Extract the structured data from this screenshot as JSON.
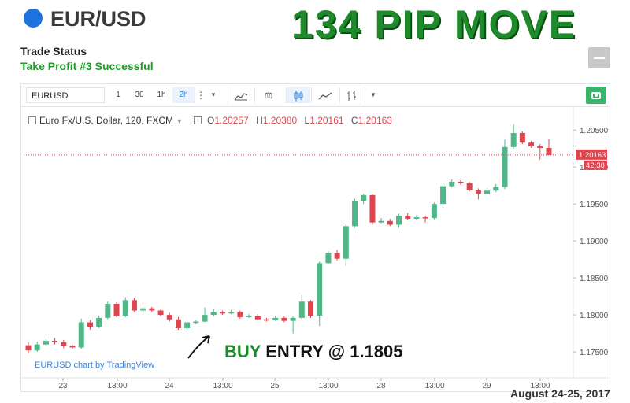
{
  "header": {
    "pair": "EUR/USD",
    "headline": "134 PIP MOVE",
    "trade_status_label": "Trade Status",
    "trade_status_value": "Take Profit #3 Successful"
  },
  "toolbar": {
    "symbol": "EURUSD",
    "intervals": [
      "1",
      "30",
      "1h",
      "2h"
    ],
    "active_interval": "2h",
    "icons": [
      "more-vert-icon",
      "dropdown-caret-icon",
      "indicators-icon",
      "compare-icon",
      "candles-icon",
      "line-chart-icon",
      "bars-icon",
      "dropdown-caret-icon"
    ]
  },
  "legend": {
    "title": "Euro Fx/U.S. Dollar, 120, FXCM",
    "o_label": "O",
    "o_value": "1.20257",
    "h_label": "H",
    "h_value": "1.20380",
    "l_label": "L",
    "l_value": "1.20161",
    "c_label": "C",
    "c_value": "1.20163"
  },
  "watermark": "EURUSD chart by TradingView",
  "annotation": {
    "buy": "BUY",
    "rest": "ENTRY @ 1.1805"
  },
  "date_note": "August 24-25, 2017",
  "colors": {
    "up": "#52b788",
    "down": "#e0454d",
    "headline": "#1e8a2c",
    "accent": "#2e86de"
  },
  "chart_data": {
    "type": "candlestick",
    "ylim": [
      1.1715,
      1.208
    ],
    "y_ticks": [
      "1.17500",
      "1.18000",
      "1.18500",
      "1.19000",
      "1.19500",
      "1.20000",
      "1.20500"
    ],
    "x_ticks": [
      "23",
      "13:00",
      "24",
      "13:00",
      "25",
      "13:00",
      "28",
      "13:00",
      "29",
      "13:00"
    ],
    "last_price": "1.20163",
    "countdown": "42:30",
    "candles": [
      [
        1.1759,
        1.1752,
        1.1763,
        1.1748
      ],
      [
        1.1752,
        1.176,
        1.1764,
        1.175
      ],
      [
        1.176,
        1.1765,
        1.1768,
        1.1758
      ],
      [
        1.1765,
        1.1763,
        1.1769,
        1.176
      ],
      [
        1.1763,
        1.1758,
        1.1766,
        1.1755
      ],
      [
        1.1758,
        1.1756,
        1.176,
        1.1754
      ],
      [
        1.1756,
        1.179,
        1.1795,
        1.1754
      ],
      [
        1.179,
        1.1784,
        1.1793,
        1.178
      ],
      [
        1.1784,
        1.1796,
        1.1799,
        1.1782
      ],
      [
        1.1796,
        1.1815,
        1.1818,
        1.1794
      ],
      [
        1.1815,
        1.1799,
        1.1817,
        1.1797
      ],
      [
        1.1799,
        1.182,
        1.1824,
        1.1797
      ],
      [
        1.182,
        1.1806,
        1.1823,
        1.1804
      ],
      [
        1.1806,
        1.1809,
        1.1811,
        1.1804
      ],
      [
        1.1809,
        1.1806,
        1.1811,
        1.1804
      ],
      [
        1.1806,
        1.18,
        1.1808,
        1.1798
      ],
      [
        1.18,
        1.1794,
        1.1803,
        1.1791
      ],
      [
        1.1794,
        1.1782,
        1.1797,
        1.178
      ],
      [
        1.1782,
        1.179,
        1.1792,
        1.178
      ],
      [
        1.179,
        1.1791,
        1.1793,
        1.1788
      ],
      [
        1.1791,
        1.18,
        1.181,
        1.179
      ],
      [
        1.18,
        1.1804,
        1.1808,
        1.1798
      ],
      [
        1.1804,
        1.1802,
        1.1806,
        1.18
      ],
      [
        1.1802,
        1.1804,
        1.1807,
        1.1801
      ],
      [
        1.1804,
        1.1797,
        1.1806,
        1.1795
      ],
      [
        1.1797,
        1.1799,
        1.1801,
        1.1796
      ],
      [
        1.1799,
        1.1794,
        1.1801,
        1.1792
      ],
      [
        1.1794,
        1.1793,
        1.1796,
        1.1791
      ],
      [
        1.1793,
        1.1796,
        1.1799,
        1.1792
      ],
      [
        1.1796,
        1.1792,
        1.1798,
        1.179
      ],
      [
        1.1792,
        1.1796,
        1.1798,
        1.1775
      ],
      [
        1.1796,
        1.1818,
        1.1827,
        1.1794
      ],
      [
        1.1818,
        1.1799,
        1.182,
        1.1796
      ],
      [
        1.1799,
        1.187,
        1.1872,
        1.1785
      ],
      [
        1.187,
        1.1884,
        1.1886,
        1.1869
      ],
      [
        1.1884,
        1.1876,
        1.1888,
        1.1874
      ],
      [
        1.1876,
        1.192,
        1.1923,
        1.1866
      ],
      [
        1.192,
        1.1954,
        1.1957,
        1.1918
      ],
      [
        1.1954,
        1.1962,
        1.1964,
        1.195
      ],
      [
        1.1962,
        1.1925,
        1.1963,
        1.1922
      ],
      [
        1.1925,
        1.1927,
        1.1931,
        1.1924
      ],
      [
        1.1927,
        1.1922,
        1.193,
        1.192
      ],
      [
        1.1922,
        1.1934,
        1.1937,
        1.1918
      ],
      [
        1.1934,
        1.193,
        1.1938,
        1.1928
      ],
      [
        1.193,
        1.1932,
        1.1935,
        1.1929
      ],
      [
        1.1932,
        1.1931,
        1.1934,
        1.1925
      ],
      [
        1.1931,
        1.195,
        1.1952,
        1.1929
      ],
      [
        1.195,
        1.1974,
        1.1978,
        1.1948
      ],
      [
        1.1974,
        1.198,
        1.1983,
        1.1972
      ],
      [
        1.198,
        1.1978,
        1.1982,
        1.1976
      ],
      [
        1.1978,
        1.1969,
        1.198,
        1.1967
      ],
      [
        1.1969,
        1.1964,
        1.1971,
        1.1956
      ],
      [
        1.1964,
        1.1968,
        1.1971,
        1.1963
      ],
      [
        1.1968,
        1.1973,
        1.1977,
        1.1966
      ],
      [
        1.1973,
        1.2027,
        1.2037,
        1.197
      ],
      [
        1.2027,
        1.2046,
        1.2058,
        1.2025
      ],
      [
        1.2046,
        1.2033,
        1.2048,
        1.2031
      ],
      [
        1.2033,
        1.2028,
        1.2035,
        1.2026
      ],
      [
        1.2028,
        1.20257,
        1.2031,
        1.201
      ],
      [
        1.20257,
        1.20163,
        1.2038,
        1.20161
      ]
    ]
  }
}
